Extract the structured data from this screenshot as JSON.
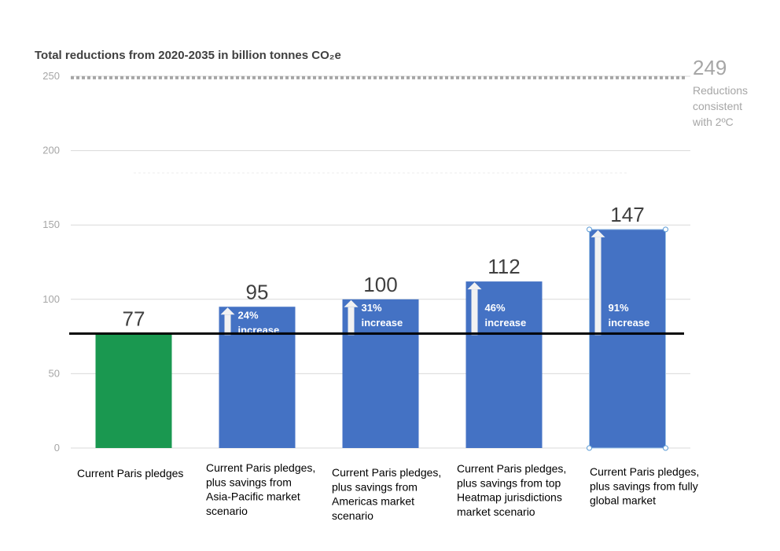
{
  "chart_data": {
    "type": "bar",
    "title": "Total reductions from 2020-2035 in billion tonnes CO₂e",
    "ylim": [
      0,
      260
    ],
    "yticks": [
      0,
      50,
      100,
      150,
      200,
      250
    ],
    "grid": true,
    "categories": [
      [
        "Current Paris pledges"
      ],
      [
        "Current Paris pledges,",
        "plus savings from",
        "Asia-Pacific market",
        "scenario"
      ],
      [
        "Current Paris pledges,",
        "plus savings from",
        "Americas market",
        "scenario"
      ],
      [
        "Current Paris pledges,",
        "plus savings from top",
        "Heatmap jurisdictions",
        "market scenario"
      ],
      [
        "Current Paris pledges,",
        "plus savings from fully",
        "global market"
      ]
    ],
    "values": [
      77,
      95,
      100,
      112,
      147
    ],
    "value_labels": [
      "77",
      "95",
      "100",
      "112",
      "147"
    ],
    "increase_labels": [
      null,
      [
        "24%",
        "increase"
      ],
      [
        "31%",
        "increase"
      ],
      [
        "46%",
        "increase"
      ],
      [
        "91%",
        "increase"
      ]
    ],
    "bar_colors": [
      "#1a9850",
      "#4472c4",
      "#4472c4",
      "#4472c4",
      "#4472c4"
    ],
    "baseline": 77,
    "reference": {
      "value": 249,
      "value_label": "249",
      "label": [
        "Reductions",
        "consistent",
        "with 2ºC"
      ]
    }
  }
}
